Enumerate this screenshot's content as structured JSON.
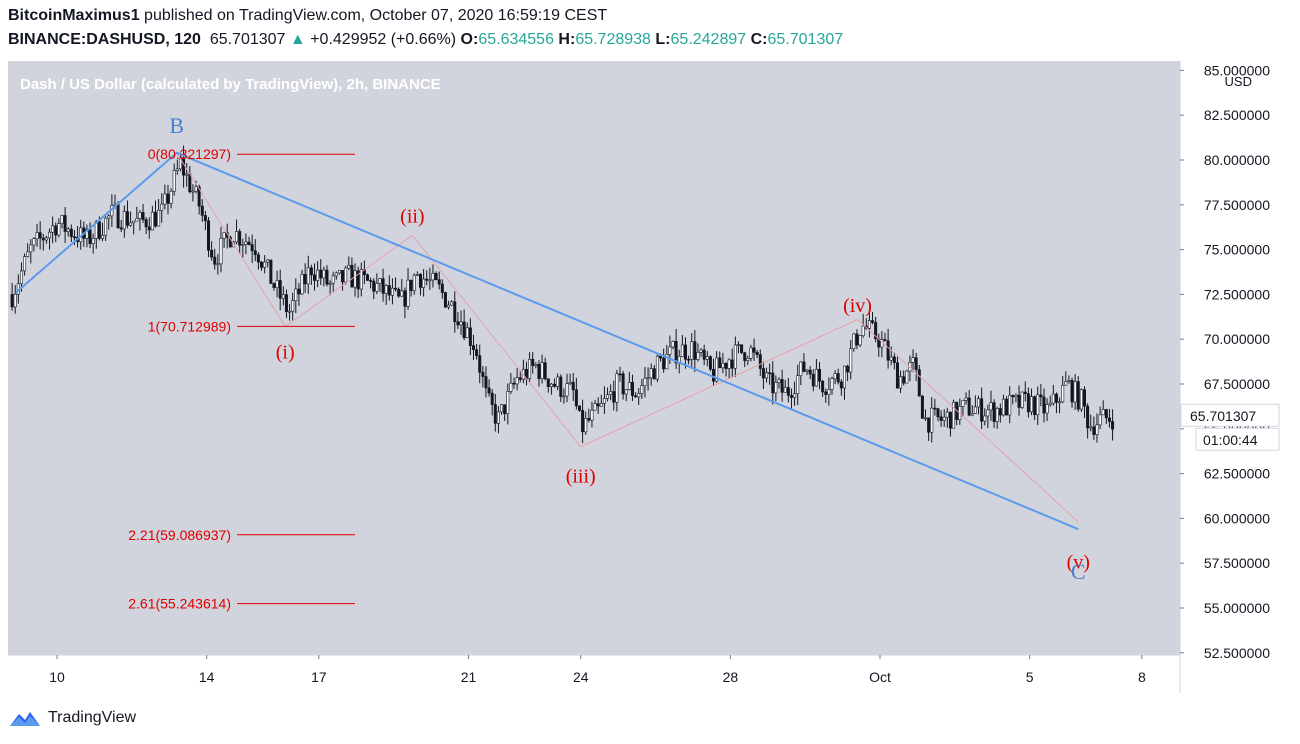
{
  "header": {
    "author": "BitcoinMaximus1",
    "published_text": "published on TradingView.com, October 07, 2020 16:59:19 CEST",
    "symbol": "BINANCE:DASHUSD, 120",
    "last_price": "65.701307",
    "change_arrow": "▲",
    "change": "+0.429952 (+0.66%)",
    "o_label": "O:",
    "o_value": "65.634556",
    "h_label": "H:",
    "h_value": "65.728938",
    "l_label": "L:",
    "l_value": "65.242897",
    "c_label": "C:",
    "c_value": "65.701307"
  },
  "footer": {
    "brand": "TradingView"
  },
  "chart_data": {
    "type": "candlestick",
    "title": "Dash / US Dollar (calculated by TradingView), 2h, BINANCE",
    "currency": "USD",
    "ylim": [
      52.5,
      85.0
    ],
    "y_ticks": [
      "85.000000",
      "82.500000",
      "80.000000",
      "77.500000",
      "75.000000",
      "72.500000",
      "70.000000",
      "67.500000",
      "65.000000",
      "62.500000",
      "60.000000",
      "57.500000",
      "55.000000",
      "52.500000"
    ],
    "x_ticks": [
      {
        "label": "10",
        "day": 10
      },
      {
        "label": "14",
        "day": 14
      },
      {
        "label": "17",
        "day": 17
      },
      {
        "label": "21",
        "day": 21
      },
      {
        "label": "24",
        "day": 24
      },
      {
        "label": "28",
        "day": 28
      },
      {
        "label": "Oct",
        "day": 32
      },
      {
        "label": "5",
        "day": 36
      },
      {
        "label": "8",
        "day": 39
      }
    ],
    "x_range_days": [
      8.8,
      38.3
    ],
    "last_price_label": "65.701307",
    "countdown": "01:00:44",
    "price_path": [
      [
        8.8,
        72.5
      ],
      [
        9.3,
        75
      ],
      [
        10,
        76.5
      ],
      [
        10.8,
        75.5
      ],
      [
        11.5,
        77
      ],
      [
        12.2,
        76.5
      ],
      [
        12.8,
        77
      ],
      [
        13.3,
        79.8
      ],
      [
        13.8,
        77.5
      ],
      [
        14.2,
        74.5
      ],
      [
        14.7,
        76
      ],
      [
        15.3,
        75.2
      ],
      [
        15.8,
        73
      ],
      [
        16.2,
        71.5
      ],
      [
        16.8,
        74
      ],
      [
        17.3,
        73
      ],
      [
        17.8,
        73.5
      ],
      [
        18.5,
        73
      ],
      [
        19.2,
        72
      ],
      [
        19.6,
        73.7
      ],
      [
        20.2,
        72.8
      ],
      [
        20.7,
        71.5
      ],
      [
        21.2,
        69.5
      ],
      [
        21.5,
        66.5
      ],
      [
        21.8,
        65.5
      ],
      [
        22.3,
        67.8
      ],
      [
        22.8,
        68.5
      ],
      [
        23.3,
        67.5
      ],
      [
        23.8,
        67
      ],
      [
        24.0,
        65
      ],
      [
        24.5,
        66
      ],
      [
        25.0,
        67.5
      ],
      [
        25.5,
        67.0
      ],
      [
        26.0,
        68.5
      ],
      [
        26.5,
        69.3
      ],
      [
        27.0,
        69.5
      ],
      [
        27.5,
        68
      ],
      [
        28.0,
        69
      ],
      [
        28.5,
        69.5
      ],
      [
        29.0,
        67.5
      ],
      [
        29.5,
        67
      ],
      [
        30.0,
        68.5
      ],
      [
        30.5,
        67.5
      ],
      [
        31.0,
        68
      ],
      [
        31.5,
        70.8
      ],
      [
        32.0,
        70
      ],
      [
        32.5,
        67.8
      ],
      [
        32.9,
        68.5
      ],
      [
        33.2,
        65.5
      ],
      [
        33.7,
        65.5
      ],
      [
        34.3,
        66.2
      ],
      [
        35.0,
        66
      ],
      [
        35.5,
        66.3
      ],
      [
        36.0,
        66.5
      ],
      [
        36.5,
        66
      ],
      [
        37.0,
        67.5
      ],
      [
        37.4,
        66.5
      ],
      [
        37.6,
        65.2
      ],
      [
        37.9,
        65.5
      ],
      [
        38.3,
        65.7
      ]
    ],
    "fib_levels": [
      {
        "label": "0(80.321297)",
        "value": 80.321297
      },
      {
        "label": "1(70.712989)",
        "value": 70.712989
      },
      {
        "label": "2.21(59.086937)",
        "value": 59.086937
      },
      {
        "label": "2.61(55.243614)",
        "value": 55.243614
      }
    ],
    "wave_labels": [
      {
        "text": "B",
        "day": 13.2,
        "price": 81.9,
        "color": "#4a7fd0"
      },
      {
        "text": "(i)",
        "day": 16.1,
        "price": 69.3,
        "color": "#e00000"
      },
      {
        "text": "(ii)",
        "day": 19.5,
        "price": 76.9,
        "color": "#e00000"
      },
      {
        "text": "(iii)",
        "day": 24.0,
        "price": 62.4,
        "color": "#e00000"
      },
      {
        "text": "(iv)",
        "day": 31.4,
        "price": 71.9,
        "color": "#e00000"
      },
      {
        "text": "(v)",
        "day": 37.3,
        "price": 57.6,
        "color": "#e00000"
      },
      {
        "text": "C",
        "day": 37.3,
        "price": 57.0,
        "color": "#4a7fd0"
      }
    ],
    "blue_line": [
      [
        8.9,
        72.6
      ],
      [
        13.2,
        80.4
      ],
      [
        37.3,
        59.4
      ]
    ],
    "pink_path": [
      [
        13.2,
        80.4
      ],
      [
        16.1,
        70.7
      ],
      [
        19.5,
        75.8
      ],
      [
        24.0,
        64.0
      ],
      [
        31.4,
        71.1
      ],
      [
        37.3,
        59.8
      ]
    ],
    "colors": {
      "background": "#d1d4dc",
      "fib": "#e00000",
      "blue_line": "#5b9bea",
      "pink_line": "#e5a3ab",
      "candle": "#131722"
    }
  }
}
